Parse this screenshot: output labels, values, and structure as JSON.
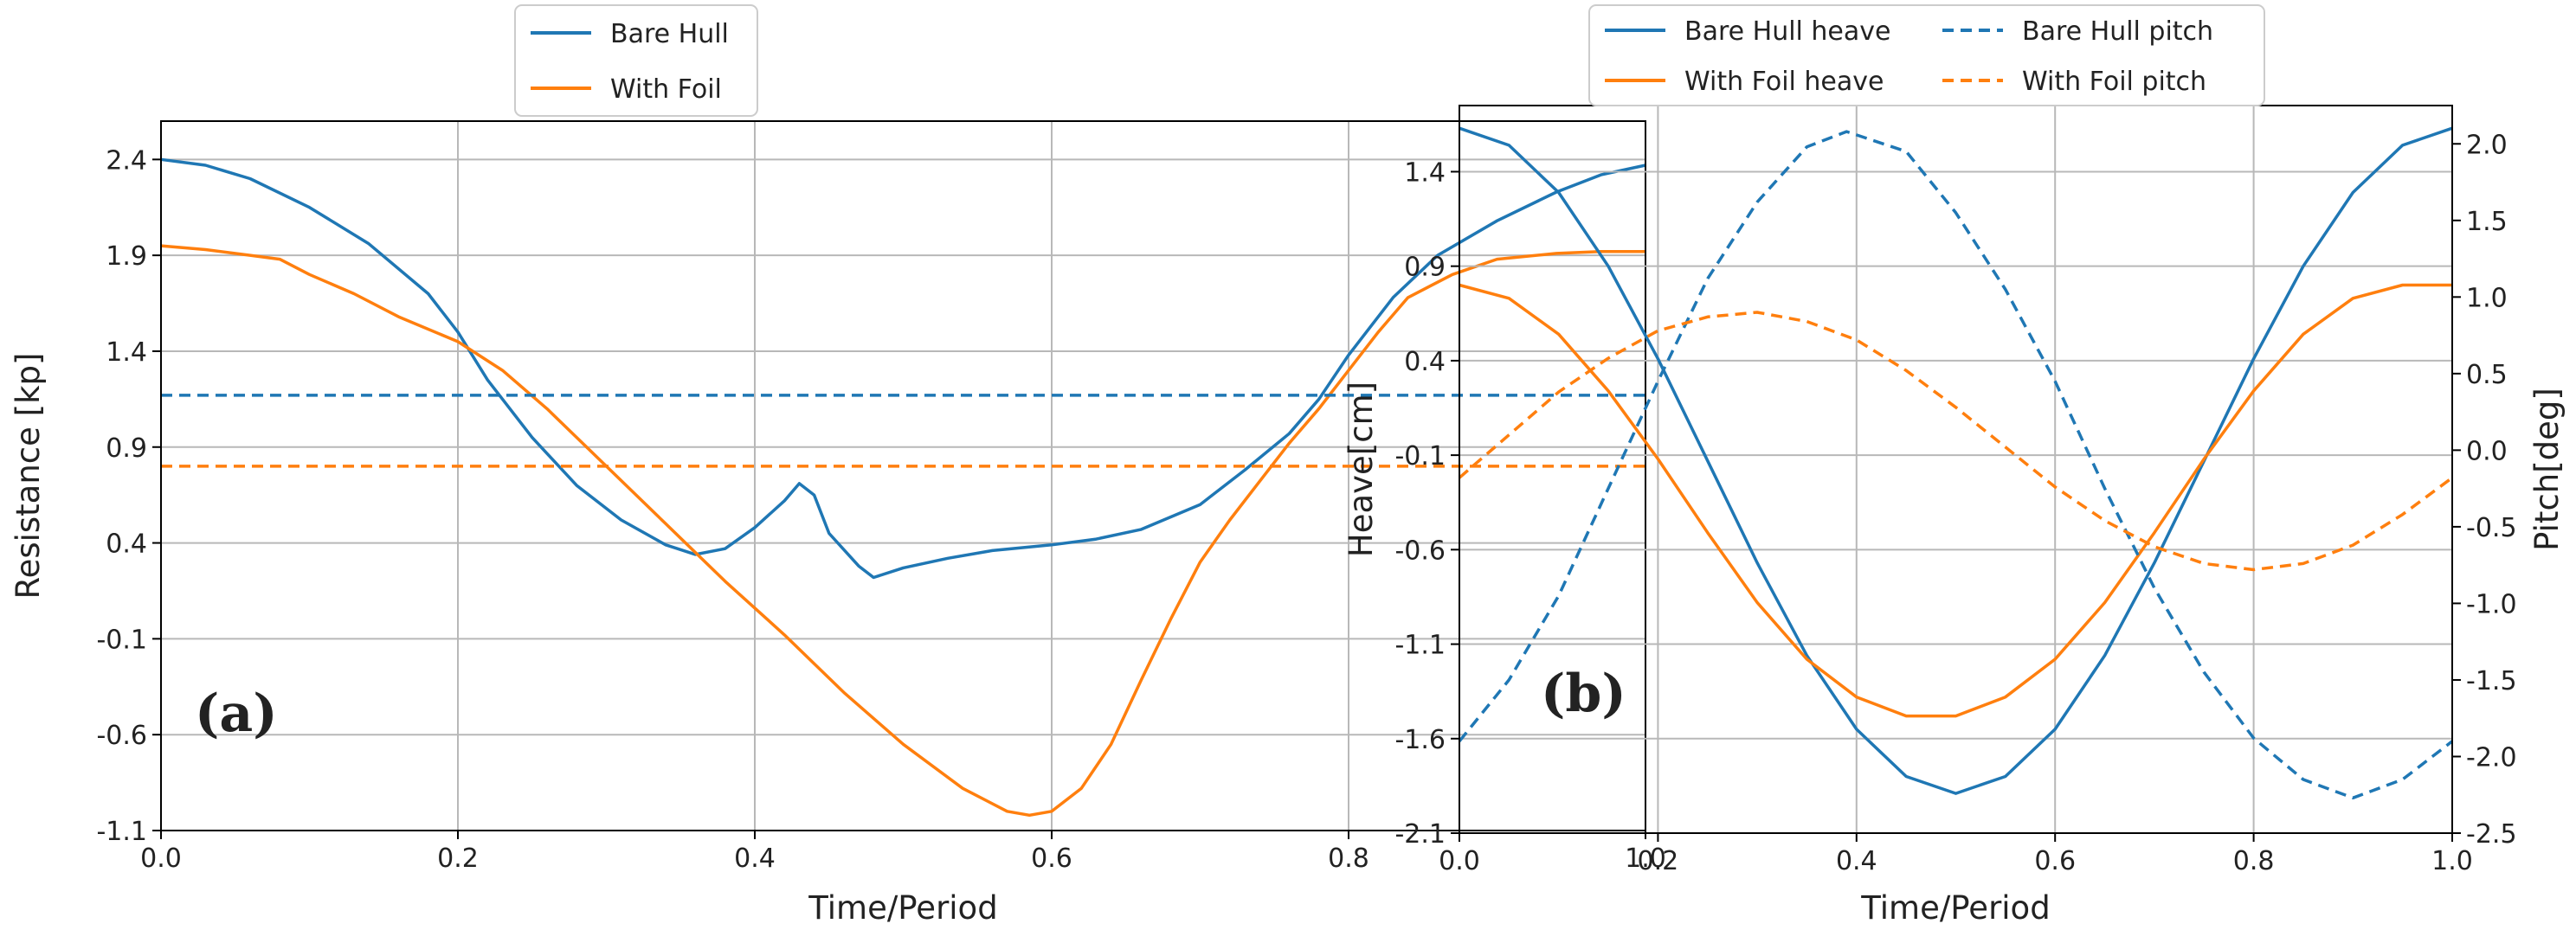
{
  "chart_data": [
    {
      "panel": "(a)",
      "type": "line",
      "xlabel": "Time/Period",
      "ylabel": "Resistance [kp]",
      "xlim": [
        0,
        1
      ],
      "ylim": [
        -1.1,
        2.6
      ],
      "xticks": [
        "0.0",
        "0.2",
        "0.4",
        "0.6",
        "0.8",
        "1.0"
      ],
      "yticks": [
        "2.4",
        "1.9",
        "1.4",
        "0.9",
        "0.4",
        "-0.1",
        "-0.6",
        "-1.1"
      ],
      "grid": true,
      "legend_position": "top-center",
      "legend": [
        "Bare Hull",
        "With Foil"
      ],
      "series": [
        {
          "name": "Bare Hull",
          "color": "#1f77b4",
          "style": "solid",
          "x": [
            0,
            0.03,
            0.06,
            0.1,
            0.14,
            0.18,
            0.2,
            0.22,
            0.25,
            0.28,
            0.31,
            0.34,
            0.36,
            0.38,
            0.4,
            0.42,
            0.43,
            0.44,
            0.45,
            0.47,
            0.48,
            0.5,
            0.53,
            0.56,
            0.6,
            0.63,
            0.66,
            0.7,
            0.73,
            0.76,
            0.78,
            0.8,
            0.83,
            0.86,
            0.9,
            0.94,
            0.97,
            1.0
          ],
          "y": [
            2.4,
            2.37,
            2.3,
            2.15,
            1.96,
            1.7,
            1.5,
            1.25,
            0.95,
            0.7,
            0.52,
            0.39,
            0.34,
            0.37,
            0.48,
            0.62,
            0.71,
            0.65,
            0.45,
            0.28,
            0.22,
            0.27,
            0.32,
            0.36,
            0.39,
            0.42,
            0.47,
            0.6,
            0.78,
            0.97,
            1.15,
            1.38,
            1.68,
            1.9,
            2.08,
            2.23,
            2.32,
            2.37
          ]
        },
        {
          "name": "With Foil",
          "color": "#ff7f0e",
          "style": "solid",
          "x": [
            0,
            0.03,
            0.06,
            0.08,
            0.1,
            0.13,
            0.16,
            0.2,
            0.23,
            0.26,
            0.3,
            0.34,
            0.38,
            0.42,
            0.46,
            0.5,
            0.54,
            0.57,
            0.585,
            0.6,
            0.62,
            0.64,
            0.66,
            0.68,
            0.7,
            0.72,
            0.74,
            0.76,
            0.78,
            0.8,
            0.82,
            0.84,
            0.87,
            0.9,
            0.94,
            0.97,
            1.0
          ],
          "y": [
            1.95,
            1.93,
            1.9,
            1.88,
            1.8,
            1.7,
            1.58,
            1.45,
            1.3,
            1.1,
            0.8,
            0.5,
            0.2,
            -0.08,
            -0.38,
            -0.65,
            -0.88,
            -1.0,
            -1.02,
            -1.0,
            -0.88,
            -0.65,
            -0.32,
            0.0,
            0.3,
            0.52,
            0.72,
            0.92,
            1.1,
            1.3,
            1.5,
            1.68,
            1.8,
            1.88,
            1.91,
            1.92,
            1.92
          ]
        },
        {
          "name": "Bare Hull mean",
          "color": "#1f77b4",
          "style": "dashed",
          "x": [
            0,
            1
          ],
          "y": [
            1.17,
            1.17
          ]
        },
        {
          "name": "With Foil mean",
          "color": "#ff7f0e",
          "style": "dashed",
          "x": [
            0,
            1
          ],
          "y": [
            0.8,
            0.8
          ]
        }
      ]
    },
    {
      "panel": "(b)",
      "type": "line",
      "xlabel": "Time/Period",
      "ylabel": "Heave[cm]",
      "y2label": "Pitch[deg]",
      "xlim": [
        0,
        1
      ],
      "ylim": [
        -2.1,
        1.75
      ],
      "y2lim": [
        -2.5,
        2.25
      ],
      "xticks": [
        "0.0",
        "0.2",
        "0.4",
        "0.6",
        "0.8",
        "1.0"
      ],
      "yticks": [
        "1.4",
        "0.9",
        "0.4",
        "-0.1",
        "-0.6",
        "-1.1",
        "-1.6",
        "-2.1"
      ],
      "y2ticks": [
        "2.0",
        "1.5",
        "1.0",
        "0.5",
        "0.0",
        "-0.5",
        "-1.0",
        "-1.5",
        "-2.0",
        "-2.5"
      ],
      "grid": true,
      "legend_position": "top-center",
      "legend": [
        "Bare Hull heave",
        "With Foil heave",
        "Bare Hull pitch",
        "With Foil pitch"
      ],
      "series": [
        {
          "name": "Bare Hull heave",
          "axis": "left",
          "color": "#1f77b4",
          "style": "solid",
          "x": [
            0,
            0.05,
            0.1,
            0.15,
            0.2,
            0.25,
            0.3,
            0.35,
            0.4,
            0.45,
            0.5,
            0.55,
            0.6,
            0.65,
            0.7,
            0.75,
            0.8,
            0.85,
            0.9,
            0.95,
            1.0
          ],
          "y": [
            1.63,
            1.54,
            1.29,
            0.9,
            0.41,
            -0.13,
            -0.67,
            -1.16,
            -1.55,
            -1.8,
            -1.89,
            -1.8,
            -1.55,
            -1.16,
            -0.67,
            -0.13,
            0.41,
            0.9,
            1.29,
            1.54,
            1.63
          ]
        },
        {
          "name": "With Foil heave",
          "axis": "left",
          "color": "#ff7f0e",
          "style": "solid",
          "x": [
            0,
            0.05,
            0.1,
            0.15,
            0.2,
            0.25,
            0.3,
            0.35,
            0.4,
            0.45,
            0.5,
            0.55,
            0.6,
            0.65,
            0.7,
            0.75,
            0.8,
            0.85,
            0.9,
            0.95,
            1.0
          ],
          "y": [
            0.8,
            0.73,
            0.54,
            0.24,
            -0.12,
            -0.51,
            -0.88,
            -1.18,
            -1.38,
            -1.48,
            -1.48,
            -1.38,
            -1.18,
            -0.88,
            -0.51,
            -0.12,
            0.24,
            0.54,
            0.73,
            0.8,
            0.8
          ]
        },
        {
          "name": "Bare Hull pitch",
          "axis": "right",
          "color": "#1f77b4",
          "style": "dashed",
          "x": [
            0,
            0.05,
            0.1,
            0.15,
            0.2,
            0.25,
            0.3,
            0.35,
            0.39,
            0.45,
            0.5,
            0.55,
            0.6,
            0.65,
            0.7,
            0.75,
            0.8,
            0.85,
            0.9,
            0.95,
            1.0
          ],
          "y": [
            -1.9,
            -1.5,
            -0.95,
            -0.25,
            0.45,
            1.12,
            1.62,
            1.98,
            2.08,
            1.95,
            1.55,
            1.05,
            0.45,
            -0.25,
            -0.9,
            -1.45,
            -1.88,
            -2.15,
            -2.27,
            -2.15,
            -1.9
          ]
        },
        {
          "name": "With Foil pitch",
          "axis": "right",
          "color": "#ff7f0e",
          "style": "dashed",
          "x": [
            0,
            0.05,
            0.1,
            0.15,
            0.2,
            0.25,
            0.3,
            0.35,
            0.4,
            0.45,
            0.5,
            0.55,
            0.6,
            0.65,
            0.7,
            0.75,
            0.8,
            0.85,
            0.9,
            0.95,
            1.0
          ],
          "y": [
            -0.18,
            0.1,
            0.38,
            0.6,
            0.78,
            0.87,
            0.9,
            0.84,
            0.72,
            0.52,
            0.28,
            0.02,
            -0.24,
            -0.46,
            -0.63,
            -0.74,
            -0.78,
            -0.74,
            -0.62,
            -0.42,
            -0.18
          ]
        }
      ]
    }
  ]
}
